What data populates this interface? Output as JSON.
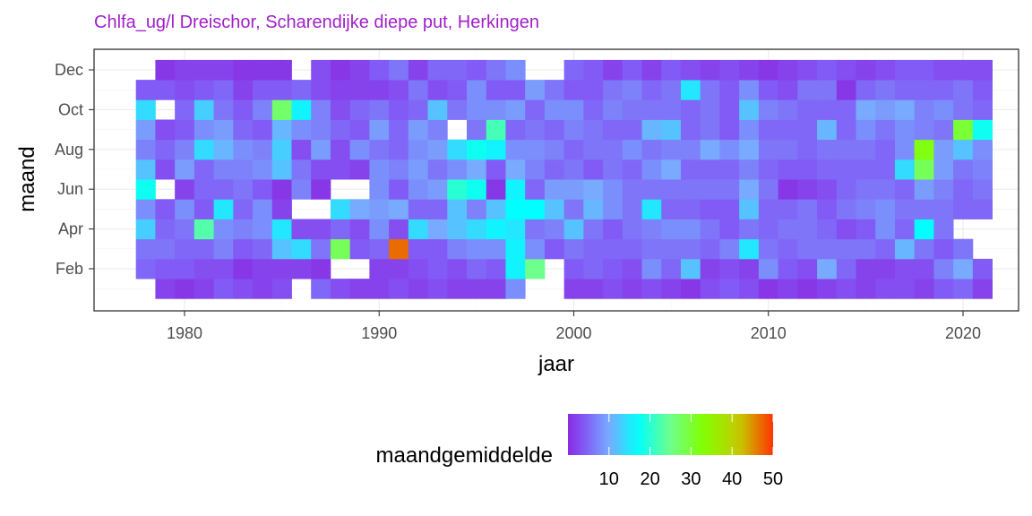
{
  "chart_data": {
    "type": "heatmap",
    "title": "Chlfa_ug/l Dreischor, Scharendijke diepe put, Herkingen",
    "xlabel": "jaar",
    "ylabel": "maand",
    "xlim": [
      1977,
      2021
    ],
    "ylim": [
      1,
      12
    ],
    "x_ticks": [
      1980,
      1990,
      2000,
      2010,
      2020
    ],
    "y_ticks": [
      {
        "value": 2,
        "label": "Feb"
      },
      {
        "value": 4,
        "label": "Apr"
      },
      {
        "value": 6,
        "label": "Jun"
      },
      {
        "value": 8,
        "label": "Aug"
      },
      {
        "value": 10,
        "label": "Oct"
      },
      {
        "value": 12,
        "label": "Dec"
      }
    ],
    "grid": true,
    "legend": {
      "title": "maandgemiddelde",
      "position": "bottom",
      "ticks": [
        10,
        20,
        30,
        40,
        50
      ],
      "range": [
        0,
        50
      ],
      "gradient_colors": [
        "#8a2be2",
        "#00ffff",
        "#80ff80",
        "#80ff00",
        "#ff3300"
      ]
    },
    "first_year": 1978,
    "years_note_order": "rows are years from first_year, columns are months Jan..Dec; null = no data",
    "values": [
      [
        null,
        5,
        6,
        13,
        8,
        18,
        12,
        7,
        9,
        14,
        4,
        null
      ],
      [
        2,
        4,
        6,
        5,
        4,
        null,
        3,
        5,
        3,
        null,
        4,
        1
      ],
      [
        1,
        4,
        5,
        6,
        8,
        2,
        9,
        7,
        4,
        5,
        3,
        2
      ],
      [
        2,
        3,
        5,
        23,
        4,
        5,
        5,
        14,
        8,
        13,
        4,
        2
      ],
      [
        4,
        3,
        7,
        8,
        15,
        5,
        7,
        11,
        9,
        6,
        5,
        2
      ],
      [
        3,
        1,
        4,
        7,
        5,
        6,
        7,
        8,
        5,
        4,
        2,
        1
      ],
      [
        2,
        2,
        5,
        8,
        8,
        4,
        8,
        7,
        4,
        7,
        4,
        1
      ],
      [
        3,
        2,
        12,
        15,
        2,
        1,
        12,
        13,
        11,
        27,
        4,
        1
      ],
      [
        null,
        2,
        14,
        3,
        null,
        7,
        6,
        3,
        8,
        16,
        5,
        null
      ],
      [
        5,
        1,
        6,
        3,
        null,
        1,
        3,
        9,
        7,
        7,
        3,
        3
      ],
      [
        3,
        null,
        28,
        5,
        14,
        null,
        3,
        3,
        5,
        3,
        2,
        1
      ],
      [
        2,
        null,
        4,
        3,
        10,
        null,
        2,
        8,
        4,
        5,
        2,
        2
      ],
      [
        2,
        2,
        5,
        8,
        9,
        8,
        8,
        6,
        9,
        6,
        2,
        4
      ],
      [
        3,
        2,
        47,
        3,
        10,
        4,
        7,
        5,
        5,
        4,
        3,
        6
      ],
      [
        2,
        3,
        4,
        14,
        5,
        8,
        9,
        8,
        9,
        5,
        6,
        2
      ],
      [
        3,
        4,
        4,
        10,
        5,
        9,
        6,
        9,
        7,
        12,
        3,
        5
      ],
      [
        2,
        3,
        7,
        12,
        12,
        20,
        8,
        14,
        null,
        6,
        4,
        5
      ],
      [
        2,
        5,
        8,
        14,
        7,
        18,
        10,
        18,
        6,
        8,
        8,
        4
      ],
      [
        2,
        4,
        8,
        16,
        12,
        1,
        4,
        16,
        22,
        8,
        4,
        6
      ],
      [
        8,
        16,
        16,
        15,
        17,
        16,
        10,
        8,
        5,
        9,
        4,
        8
      ],
      [
        null,
        25,
        8,
        6,
        17,
        5,
        7,
        8,
        6,
        5,
        9,
        null
      ],
      [
        null,
        null,
        4,
        7,
        12,
        9,
        5,
        7,
        5,
        8,
        6,
        null
      ],
      [
        2,
        4,
        6,
        12,
        6,
        9,
        6,
        5,
        7,
        8,
        4,
        5
      ],
      [
        2,
        5,
        5,
        6,
        11,
        10,
        4,
        6,
        6,
        5,
        4,
        4
      ],
      [
        3,
        4,
        5,
        4,
        8,
        8,
        6,
        6,
        5,
        7,
        6,
        2
      ],
      [
        2,
        3,
        5,
        6,
        6,
        6,
        5,
        8,
        5,
        6,
        7,
        4
      ],
      [
        3,
        8,
        6,
        7,
        15,
        6,
        8,
        6,
        11,
        6,
        5,
        2
      ],
      [
        2,
        5,
        6,
        8,
        5,
        6,
        10,
        7,
        12,
        6,
        6,
        4
      ],
      [
        1,
        12,
        6,
        8,
        5,
        6,
        5,
        7,
        5,
        5,
        15,
        3
      ],
      [
        3,
        2,
        5,
        6,
        4,
        6,
        5,
        10,
        6,
        6,
        6,
        2
      ],
      [
        4,
        3,
        7,
        4,
        4,
        6,
        5,
        8,
        4,
        4,
        4,
        3
      ],
      [
        3,
        2,
        15,
        6,
        12,
        10,
        7,
        10,
        8,
        12,
        8,
        2
      ],
      [
        1,
        8,
        6,
        5,
        5,
        6,
        5,
        6,
        5,
        7,
        4,
        1
      ],
      [
        2,
        4,
        5,
        6,
        5,
        1,
        4,
        6,
        5,
        6,
        3,
        2
      ],
      [
        1,
        3,
        6,
        6,
        6,
        2,
        4,
        5,
        5,
        5,
        6,
        3
      ],
      [
        2,
        10,
        6,
        5,
        4,
        3,
        5,
        6,
        11,
        5,
        6,
        4
      ],
      [
        3,
        5,
        6,
        3,
        6,
        5,
        5,
        6,
        5,
        5,
        1,
        3
      ],
      [
        2,
        2,
        6,
        4,
        7,
        6,
        5,
        6,
        8,
        10,
        5,
        2
      ],
      [
        3,
        2,
        5,
        8,
        8,
        6,
        5,
        5,
        6,
        9,
        6,
        3
      ],
      [
        3,
        3,
        11,
        5,
        6,
        5,
        14,
        8,
        8,
        10,
        5,
        4
      ],
      [
        2,
        3,
        6,
        17,
        6,
        9,
        28,
        32,
        7,
        7,
        5,
        4
      ],
      [
        4,
        7,
        4,
        6,
        6,
        7,
        9,
        9,
        6,
        8,
        5,
        3
      ],
      [
        5,
        10,
        6,
        null,
        5,
        5,
        6,
        12,
        30,
        6,
        6,
        3
      ],
      [
        2,
        4,
        null,
        null,
        5,
        6,
        7,
        8,
        18,
        5,
        4,
        3
      ]
    ]
  }
}
